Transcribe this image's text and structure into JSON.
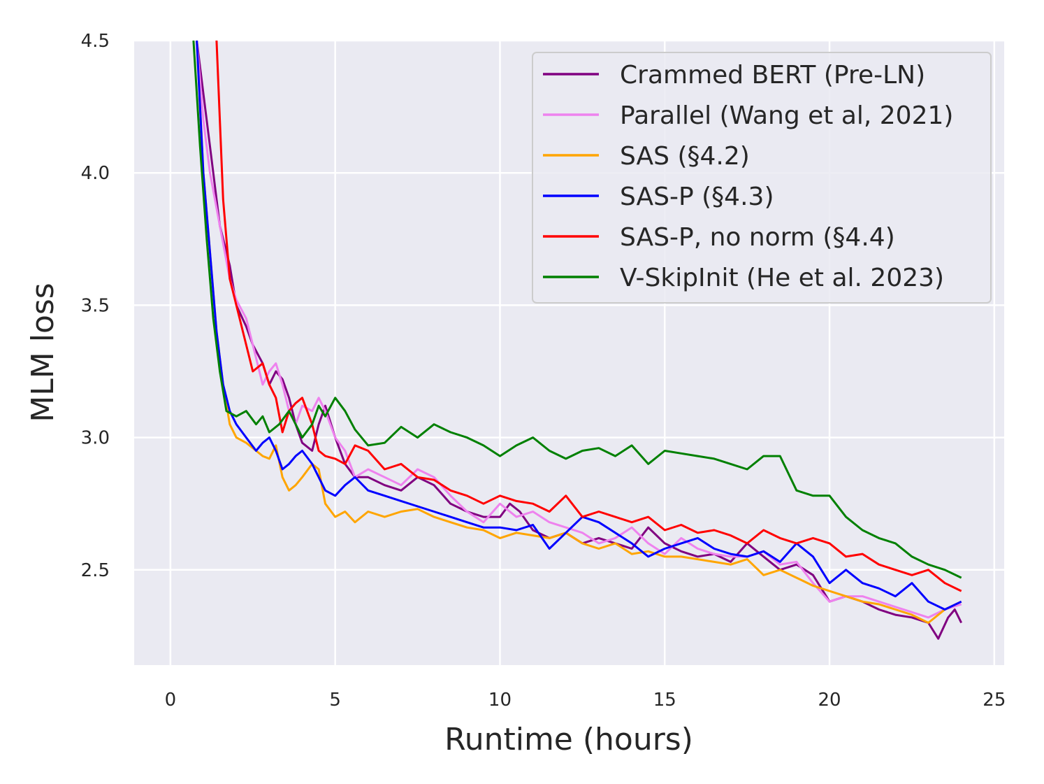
{
  "chart_data": {
    "type": "line",
    "title": "",
    "xlabel": "Runtime (hours)",
    "ylabel": "MLM loss",
    "xlim": [
      -1.1,
      25.3
    ],
    "ylim": [
      2.14,
      4.5
    ],
    "xticks": [
      0,
      5,
      10,
      15,
      20,
      25
    ],
    "xtick_labels": [
      "0",
      "5",
      "10",
      "15",
      "20",
      "25"
    ],
    "yticks": [
      2.5,
      3.0,
      3.5,
      4.0,
      4.5
    ],
    "ytick_labels": [
      "2.5",
      "3.0",
      "3.5",
      "4.0",
      "4.5"
    ],
    "grid": true,
    "legend_position": "top-right",
    "series": [
      {
        "name": "Crammed BERT (Pre-LN)",
        "color": "#800080",
        "x": [
          0.8,
          1.0,
          1.2,
          1.5,
          1.8,
          2.0,
          2.3,
          2.5,
          2.8,
          3.0,
          3.2,
          3.4,
          3.6,
          3.8,
          4.0,
          4.3,
          4.5,
          4.7,
          5.0,
          5.3,
          5.6,
          6.0,
          6.5,
          7.0,
          7.5,
          8.0,
          8.5,
          9.0,
          9.5,
          10.0,
          10.3,
          10.6,
          11.0,
          11.5,
          12.0,
          12.5,
          13.0,
          13.5,
          14.0,
          14.5,
          15.0,
          15.5,
          16.0,
          16.5,
          17.0,
          17.5,
          18.0,
          18.5,
          19.0,
          19.5,
          20.0,
          20.5,
          21.0,
          21.5,
          22.0,
          22.5,
          23.0,
          23.3,
          23.6,
          23.8,
          24.0
        ],
        "y": [
          4.5,
          4.3,
          4.1,
          3.8,
          3.65,
          3.5,
          3.42,
          3.35,
          3.28,
          3.2,
          3.25,
          3.22,
          3.15,
          3.05,
          2.98,
          2.95,
          3.05,
          3.12,
          3.0,
          2.9,
          2.85,
          2.85,
          2.82,
          2.8,
          2.85,
          2.82,
          2.75,
          2.72,
          2.7,
          2.7,
          2.75,
          2.72,
          2.65,
          2.62,
          2.64,
          2.6,
          2.62,
          2.6,
          2.58,
          2.66,
          2.6,
          2.57,
          2.55,
          2.56,
          2.53,
          2.6,
          2.55,
          2.5,
          2.52,
          2.48,
          2.38,
          2.4,
          2.38,
          2.35,
          2.33,
          2.32,
          2.3,
          2.24,
          2.32,
          2.35,
          2.3
        ]
      },
      {
        "name": "Parallel (Wang et al, 2021)",
        "color": "#EE82EE",
        "x": [
          0.8,
          1.0,
          1.2,
          1.5,
          1.8,
          2.0,
          2.3,
          2.5,
          2.8,
          3.0,
          3.2,
          3.4,
          3.6,
          3.8,
          4.0,
          4.3,
          4.5,
          4.7,
          5.0,
          5.3,
          5.6,
          6.0,
          6.5,
          7.0,
          7.5,
          8.0,
          8.5,
          9.0,
          9.5,
          10.0,
          10.5,
          11.0,
          11.5,
          12.0,
          12.5,
          13.0,
          13.5,
          14.0,
          14.5,
          15.0,
          15.5,
          16.0,
          16.5,
          17.0,
          17.5,
          18.0,
          18.5,
          19.0,
          19.5,
          20.0,
          20.5,
          21.0,
          21.5,
          22.0,
          22.5,
          23.0,
          23.5,
          24.0
        ],
        "y": [
          4.5,
          4.2,
          4.0,
          3.8,
          3.6,
          3.52,
          3.45,
          3.35,
          3.2,
          3.25,
          3.28,
          3.2,
          3.1,
          3.05,
          3.12,
          3.1,
          3.15,
          3.1,
          3.0,
          2.95,
          2.85,
          2.88,
          2.85,
          2.82,
          2.88,
          2.85,
          2.78,
          2.72,
          2.68,
          2.75,
          2.7,
          2.72,
          2.68,
          2.66,
          2.64,
          2.6,
          2.62,
          2.66,
          2.6,
          2.56,
          2.62,
          2.58,
          2.56,
          2.55,
          2.55,
          2.57,
          2.52,
          2.53,
          2.45,
          2.38,
          2.4,
          2.4,
          2.38,
          2.36,
          2.34,
          2.32,
          2.35,
          2.37
        ]
      },
      {
        "name": "SAS (§4.2)",
        "color": "#FFA500",
        "x": [
          0.8,
          1.0,
          1.2,
          1.4,
          1.6,
          1.8,
          2.0,
          2.3,
          2.6,
          2.8,
          3.0,
          3.2,
          3.4,
          3.6,
          3.8,
          4.0,
          4.3,
          4.5,
          4.7,
          5.0,
          5.3,
          5.6,
          6.0,
          6.5,
          7.0,
          7.5,
          8.0,
          8.5,
          9.0,
          9.5,
          10.0,
          10.5,
          11.0,
          11.5,
          12.0,
          12.5,
          13.0,
          13.5,
          14.0,
          14.5,
          15.0,
          15.5,
          16.0,
          16.5,
          17.0,
          17.5,
          18.0,
          18.5,
          19.0,
          19.5,
          20.0,
          20.5,
          21.0,
          21.5,
          22.0,
          22.5,
          23.0,
          23.5,
          24.0
        ],
        "y": [
          4.5,
          4.0,
          3.7,
          3.4,
          3.2,
          3.05,
          3.0,
          2.98,
          2.95,
          2.93,
          2.92,
          2.97,
          2.85,
          2.8,
          2.82,
          2.85,
          2.9,
          2.88,
          2.75,
          2.7,
          2.72,
          2.68,
          2.72,
          2.7,
          2.72,
          2.73,
          2.7,
          2.68,
          2.66,
          2.65,
          2.62,
          2.64,
          2.63,
          2.62,
          2.64,
          2.6,
          2.58,
          2.6,
          2.56,
          2.57,
          2.55,
          2.55,
          2.54,
          2.53,
          2.52,
          2.54,
          2.48,
          2.5,
          2.47,
          2.44,
          2.42,
          2.4,
          2.38,
          2.37,
          2.35,
          2.33,
          2.3,
          2.35,
          2.38
        ]
      },
      {
        "name": "SAS-P (§4.3)",
        "color": "#0000FF",
        "x": [
          0.8,
          1.0,
          1.2,
          1.4,
          1.6,
          1.8,
          2.0,
          2.3,
          2.6,
          2.8,
          3.0,
          3.2,
          3.4,
          3.6,
          3.8,
          4.0,
          4.3,
          4.5,
          4.7,
          5.0,
          5.3,
          5.6,
          6.0,
          6.5,
          7.0,
          7.5,
          8.0,
          8.5,
          9.0,
          9.5,
          10.0,
          10.5,
          11.0,
          11.5,
          12.0,
          12.5,
          13.0,
          13.5,
          14.0,
          14.5,
          15.0,
          15.5,
          16.0,
          16.5,
          17.0,
          17.5,
          18.0,
          18.5,
          19.0,
          19.5,
          20.0,
          20.5,
          21.0,
          21.5,
          22.0,
          22.5,
          23.0,
          23.5,
          24.0
        ],
        "y": [
          4.5,
          4.0,
          3.7,
          3.4,
          3.2,
          3.1,
          3.05,
          3.0,
          2.95,
          2.98,
          3.0,
          2.95,
          2.88,
          2.9,
          2.93,
          2.95,
          2.9,
          2.85,
          2.8,
          2.78,
          2.82,
          2.85,
          2.8,
          2.78,
          2.76,
          2.74,
          2.72,
          2.7,
          2.68,
          2.66,
          2.66,
          2.65,
          2.67,
          2.58,
          2.64,
          2.7,
          2.68,
          2.64,
          2.6,
          2.55,
          2.58,
          2.6,
          2.62,
          2.58,
          2.56,
          2.55,
          2.57,
          2.53,
          2.6,
          2.55,
          2.45,
          2.5,
          2.45,
          2.43,
          2.4,
          2.45,
          2.38,
          2.35,
          2.38
        ]
      },
      {
        "name": "SAS-P, no norm (§4.4)",
        "color": "#FF0000",
        "x": [
          1.4,
          1.5,
          1.6,
          1.8,
          2.0,
          2.2,
          2.5,
          2.8,
          3.0,
          3.2,
          3.4,
          3.6,
          3.8,
          4.0,
          4.3,
          4.5,
          4.7,
          5.0,
          5.3,
          5.6,
          6.0,
          6.5,
          7.0,
          7.5,
          8.0,
          8.5,
          9.0,
          9.5,
          10.0,
          10.5,
          11.0,
          11.5,
          12.0,
          12.5,
          13.0,
          13.5,
          14.0,
          14.5,
          15.0,
          15.5,
          16.0,
          16.5,
          17.0,
          17.5,
          18.0,
          18.5,
          19.0,
          19.5,
          20.0,
          20.5,
          21.0,
          21.5,
          22.0,
          22.5,
          23.0,
          23.5,
          24.0
        ],
        "y": [
          4.5,
          4.2,
          3.9,
          3.6,
          3.5,
          3.4,
          3.25,
          3.28,
          3.2,
          3.15,
          3.02,
          3.1,
          3.13,
          3.15,
          3.05,
          2.95,
          2.93,
          2.92,
          2.9,
          2.97,
          2.95,
          2.88,
          2.9,
          2.85,
          2.84,
          2.8,
          2.78,
          2.75,
          2.78,
          2.76,
          2.75,
          2.72,
          2.78,
          2.7,
          2.72,
          2.7,
          2.68,
          2.7,
          2.65,
          2.67,
          2.64,
          2.65,
          2.63,
          2.6,
          2.65,
          2.62,
          2.6,
          2.62,
          2.6,
          2.55,
          2.56,
          2.52,
          2.5,
          2.48,
          2.5,
          2.45,
          2.42
        ]
      },
      {
        "name": "V-SkipInit (He et al. 2023)",
        "color": "#008000",
        "x": [
          0.7,
          0.9,
          1.1,
          1.3,
          1.5,
          1.7,
          2.0,
          2.3,
          2.6,
          2.8,
          3.0,
          3.3,
          3.6,
          3.8,
          4.0,
          4.3,
          4.5,
          4.7,
          5.0,
          5.3,
          5.6,
          6.0,
          6.5,
          7.0,
          7.5,
          8.0,
          8.5,
          9.0,
          9.5,
          10.0,
          10.5,
          11.0,
          11.5,
          12.0,
          12.5,
          13.0,
          13.5,
          14.0,
          14.5,
          15.0,
          15.5,
          16.0,
          16.5,
          17.0,
          17.5,
          18.0,
          18.5,
          19.0,
          19.5,
          20.0,
          20.5,
          21.0,
          21.5,
          22.0,
          22.5,
          23.0,
          23.5,
          24.0
        ],
        "y": [
          4.5,
          4.1,
          3.75,
          3.45,
          3.25,
          3.1,
          3.08,
          3.1,
          3.05,
          3.08,
          3.02,
          3.05,
          3.1,
          3.05,
          3.0,
          3.05,
          3.12,
          3.08,
          3.15,
          3.1,
          3.03,
          2.97,
          2.98,
          3.04,
          3.0,
          3.05,
          3.02,
          3.0,
          2.97,
          2.93,
          2.97,
          3.0,
          2.95,
          2.92,
          2.95,
          2.96,
          2.93,
          2.97,
          2.9,
          2.95,
          2.94,
          2.93,
          2.92,
          2.9,
          2.88,
          2.93,
          2.93,
          2.8,
          2.78,
          2.78,
          2.7,
          2.65,
          2.62,
          2.6,
          2.55,
          2.52,
          2.5,
          2.47
        ]
      }
    ]
  }
}
